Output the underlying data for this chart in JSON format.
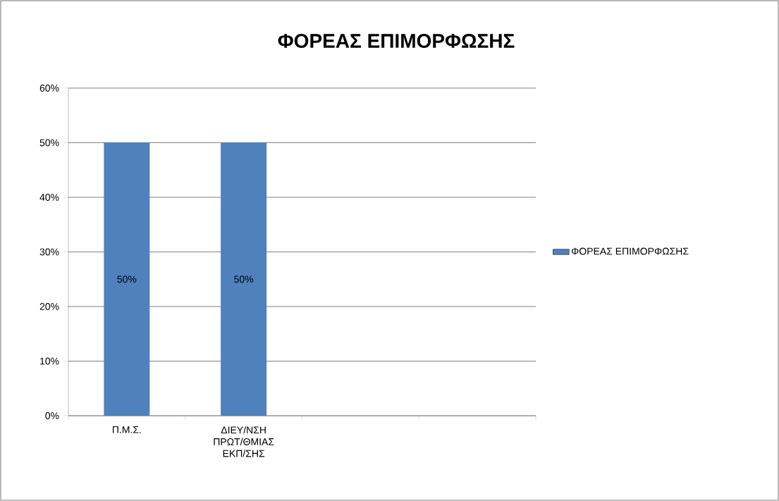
{
  "chart_data": {
    "type": "bar",
    "title": "ΦΟΡΕΑΣ ΕΠΙΜΟΡΦΩΣΗΣ",
    "categories": [
      "Π.Μ.Σ.",
      "ΔΙΕΥ/ΝΣΗ ΠΡΩΤ/ΘΜΙΑΣ ΕΚΠ/ΣΗΣ",
      null,
      null
    ],
    "series": [
      {
        "name": "ΦΟΡΕΑΣ ΕΠΙΜΟΡΦΩΣΗΣ",
        "color": "#4f81bd",
        "values": [
          50,
          50,
          null,
          null
        ],
        "value_labels": [
          "50%",
          "50%",
          null,
          null
        ]
      }
    ],
    "ylim": [
      0,
      60
    ],
    "yticks": [
      {
        "value": 0,
        "label": "0%"
      },
      {
        "value": 10,
        "label": "10%"
      },
      {
        "value": 20,
        "label": "20%"
      },
      {
        "value": 30,
        "label": "30%"
      },
      {
        "value": 40,
        "label": "40%"
      },
      {
        "value": 50,
        "label": "50%"
      },
      {
        "value": 60,
        "label": "60%"
      }
    ],
    "grid": "y",
    "legend": "right"
  }
}
